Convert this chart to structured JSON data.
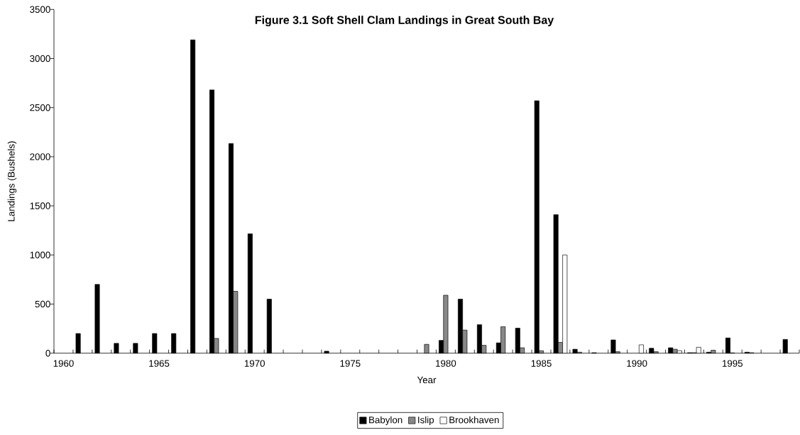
{
  "chart_data": {
    "type": "bar",
    "title": "Figure 3.1   Soft Shell Clam Landings in Great South Bay",
    "xlabel": "Year",
    "ylabel": "Landings (Bushels)",
    "categories": [
      "1960",
      null,
      null,
      null,
      null,
      "1965",
      null,
      null,
      null,
      null,
      "1970",
      null,
      null,
      null,
      null,
      "1975",
      null,
      null,
      null,
      null,
      "1980",
      null,
      null,
      null,
      null,
      "1985",
      null,
      null,
      null,
      null,
      "1990",
      null,
      null,
      null,
      null,
      "1995",
      null,
      null,
      null
    ],
    "series": [
      {
        "name": "Babylon",
        "color": "#000000",
        "values": [
          null,
          200,
          700,
          100,
          100,
          200,
          200,
          3190,
          2680,
          2135,
          1215,
          550,
          null,
          null,
          20,
          null,
          null,
          null,
          null,
          null,
          130,
          550,
          290,
          105,
          255,
          2570,
          1410,
          40,
          5,
          135,
          null,
          50,
          55,
          5,
          10,
          155,
          10,
          null,
          140
        ]
      },
      {
        "name": "Islip",
        "color": "#888888",
        "values": [
          null,
          null,
          null,
          null,
          null,
          null,
          null,
          null,
          150,
          630,
          null,
          null,
          null,
          null,
          null,
          null,
          null,
          null,
          null,
          90,
          590,
          235,
          80,
          270,
          55,
          25,
          110,
          10,
          null,
          15,
          null,
          15,
          40,
          5,
          30,
          3,
          5,
          null,
          null
        ]
      },
      {
        "name": "Brookhaven",
        "color": "#ffffff",
        "values": [
          null,
          null,
          null,
          null,
          null,
          null,
          null,
          null,
          null,
          null,
          null,
          null,
          null,
          null,
          null,
          null,
          null,
          null,
          null,
          null,
          null,
          null,
          null,
          null,
          null,
          null,
          1000,
          null,
          null,
          null,
          85,
          null,
          25,
          60,
          null,
          null,
          null,
          null,
          null
        ]
      }
    ],
    "ylim": [
      0,
      3500
    ],
    "yticks": [
      0,
      500,
      1000,
      1500,
      2000,
      2500,
      3000,
      3500
    ],
    "legend": "bottom"
  }
}
